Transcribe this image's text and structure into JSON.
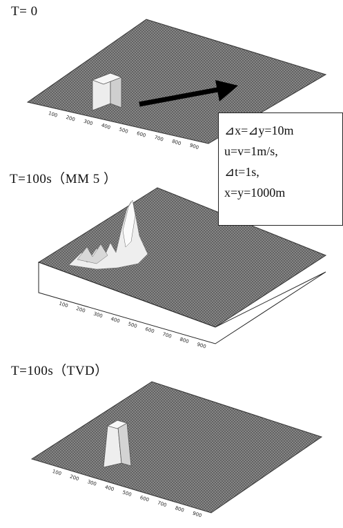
{
  "panels": [
    {
      "title": "T= 0"
    },
    {
      "title": "T=100s（MM 5 ）"
    },
    {
      "title": "T=100s（TVD）"
    }
  ],
  "params": {
    "line1": "⊿x=⊿y=10m",
    "line2": "u=v=1m/s,",
    "line3": "⊿t=1s,",
    "line4": "x=y=1000m"
  },
  "axis_ticks": [
    "100",
    "200",
    "300",
    "400",
    "500",
    "600",
    "700",
    "800",
    "900"
  ],
  "colors": {
    "surface": "#8c8c8c",
    "mesh": "#4a4a4a",
    "block": "#e8e8e8",
    "arrow": "#000000"
  }
}
